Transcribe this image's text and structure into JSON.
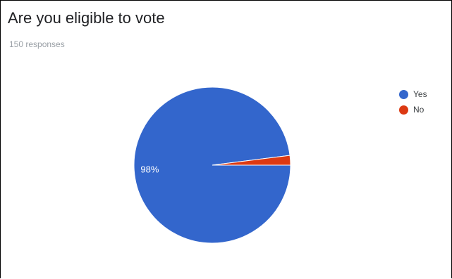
{
  "chart_data": {
    "type": "pie",
    "title": "Are you eligible to vote",
    "subtitle": "150 responses",
    "categories": [
      "Yes",
      "No"
    ],
    "values": [
      98,
      2
    ],
    "slice_labels": [
      "98%",
      ""
    ],
    "colors": [
      "#3366cc",
      "#dc3912"
    ],
    "legend_position": "right"
  }
}
